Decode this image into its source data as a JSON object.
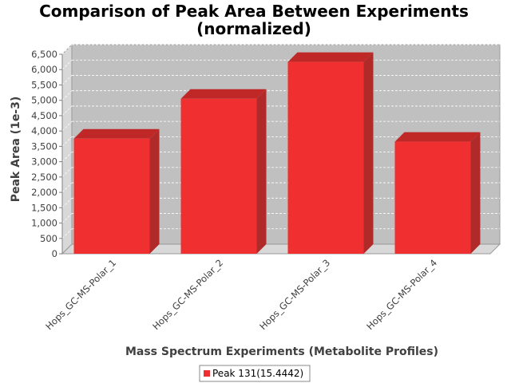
{
  "chart_data": {
    "type": "bar",
    "title_lines": [
      "Comparison of Peak Area Between Experiments",
      "(normalized)"
    ],
    "xlabel": "Mass Spectrum Experiments (Metabolite Profiles)",
    "ylabel": "Peak Area (1e-3)",
    "categories": [
      "Hops_GC-MS-Polar_1",
      "Hops_GC-MS-Polar_2",
      "Hops_GC-MS-Polar_3",
      "Hops_GC-MS-Polar_4"
    ],
    "series": [
      {
        "name": "Peak 131(15.4442)",
        "values": [
          3750,
          5050,
          6250,
          3650
        ]
      }
    ],
    "ylim": [
      0,
      6500
    ],
    "yticks": [
      0,
      500,
      1000,
      1500,
      2000,
      2500,
      3000,
      3500,
      4000,
      4500,
      5000,
      5500,
      6000,
      6500
    ],
    "ytick_labels": [
      "0",
      "500",
      "1,000",
      "1,500",
      "2,000",
      "2,500",
      "3,000",
      "3,500",
      "4,000",
      "4,500",
      "5,000",
      "5,500",
      "6,000",
      "6,500"
    ],
    "grid": true,
    "legend_position": "bottom",
    "style": "3d-bar",
    "colors": {
      "bar_front": "#f03030",
      "bar_top": "#c02828",
      "bar_side": "#b02a2a",
      "plot_background": "#c0c0c0",
      "plot_wall": "#d8d8d8",
      "gridline": "#ffffff"
    }
  }
}
